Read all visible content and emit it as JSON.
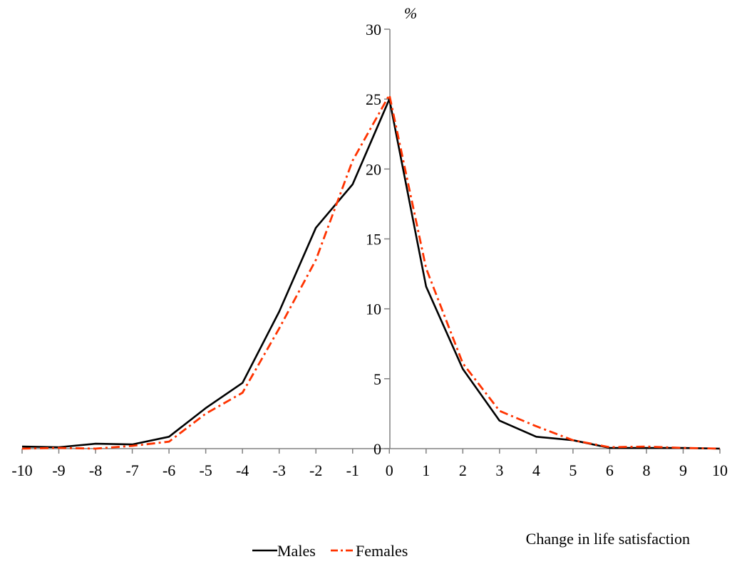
{
  "chart_data": {
    "type": "line",
    "title": "",
    "xlabel": "Change in life satisfaction",
    "ylabel": "%",
    "ylim": [
      0,
      30
    ],
    "yticks": [
      "0",
      "5",
      "10",
      "15",
      "20",
      "25",
      "30"
    ],
    "categories": [
      "-10",
      "-9",
      "-8",
      "-7",
      "-6",
      "-5",
      "-4",
      "-3",
      "-2",
      "-1",
      "0",
      "1",
      "2",
      "3",
      "4",
      "5",
      "6",
      "8",
      "9",
      "10"
    ],
    "grid": false,
    "legend_position": "bottom",
    "series": [
      {
        "name": "Males",
        "color": "#000000",
        "style": "solid",
        "values": [
          0.15,
          0.1,
          0.35,
          0.3,
          0.85,
          2.9,
          4.7,
          9.8,
          15.8,
          18.9,
          25.0,
          11.6,
          5.7,
          2.0,
          0.85,
          0.6,
          0.05,
          0.05,
          0.05,
          0.0
        ]
      },
      {
        "name": "Females",
        "color": "#ff3300",
        "style": "dashdot",
        "values": [
          0.0,
          0.05,
          0.0,
          0.2,
          0.5,
          2.5,
          4.0,
          8.6,
          13.5,
          20.6,
          25.3,
          12.9,
          6.1,
          2.7,
          1.6,
          0.6,
          0.1,
          0.15,
          0.05,
          0.0
        ]
      }
    ]
  }
}
